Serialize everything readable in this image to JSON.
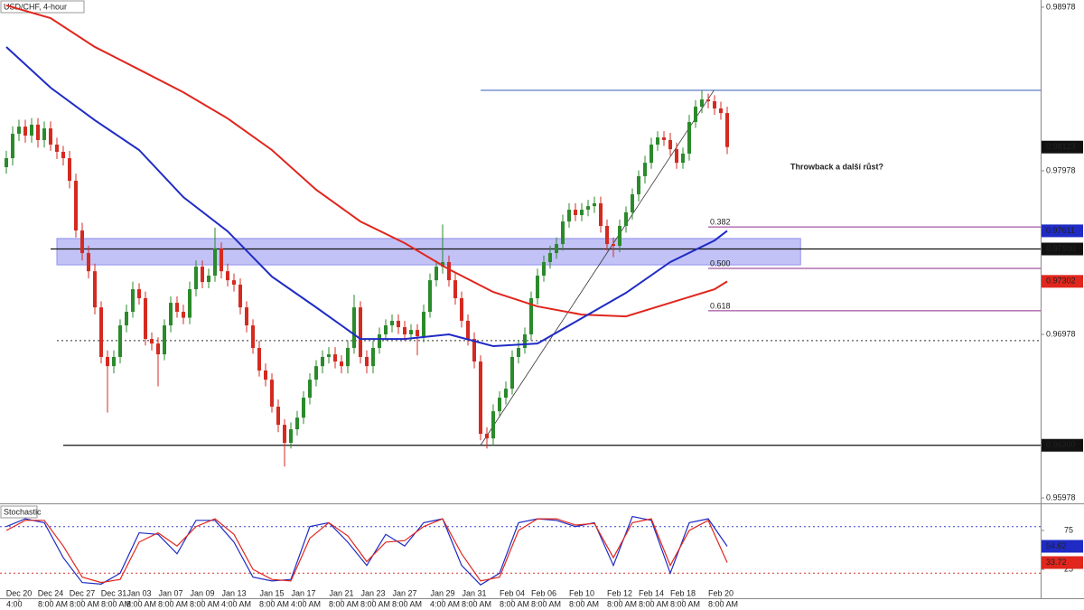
{
  "chart_data": [
    {
      "type": "candlestick",
      "title": "USD/CHF, 4-hour",
      "open": [
        0.98,
        0.98055,
        0.98204,
        0.98248,
        0.98193,
        0.9826,
        0.98166,
        0.98237,
        0.98138,
        0.98094,
        0.98055,
        0.97917,
        0.97613,
        0.97475,
        0.97364,
        0.97143,
        0.9684,
        0.96784,
        0.9684,
        0.97033,
        0.97116,
        0.97254,
        0.97199,
        0.9695,
        0.96922,
        0.96856,
        0.97033,
        0.97171,
        0.97116,
        0.9708,
        0.97254,
        0.97392,
        0.97298,
        0.97337,
        0.97503,
        0.97364,
        0.97309,
        0.97282,
        0.97143,
        0.97033,
        0.96895,
        0.96757,
        0.96701,
        0.96536,
        0.96425,
        0.96315,
        0.96398,
        0.96469,
        0.96591,
        0.96701,
        0.96784,
        0.9684,
        0.96856,
        0.96812,
        0.96784,
        0.96895,
        0.97143,
        0.9684,
        0.96784,
        0.96895,
        0.96978,
        0.97033,
        0.97061,
        0.97022,
        0.96978,
        0.97005,
        0.96967,
        0.97116,
        0.97309,
        0.97392,
        0.9742,
        0.97309,
        0.97199,
        0.97061,
        0.9695,
        0.96812,
        0.9637,
        0.96342,
        0.96508,
        0.96591,
        0.96646,
        0.9684,
        0.96895,
        0.96978,
        0.97199,
        0.97337,
        0.9742,
        0.97475,
        0.9753,
        0.97668,
        0.9774,
        0.97707,
        0.9774,
        0.97762,
        0.97779,
        0.97641,
        0.9753,
        0.97519,
        0.97641,
        0.97724,
        0.97834,
        0.97945,
        0.98027,
        0.98138,
        0.98182,
        0.98166,
        0.9811,
        0.98027,
        0.98083,
        0.98276,
        0.9837,
        0.98414,
        0.98403,
        0.98359,
        0.98331
      ],
      "high": [
        0.981,
        0.9825,
        0.9829,
        0.9829,
        0.983,
        0.983,
        0.9828,
        0.9828,
        0.9818,
        0.9813,
        0.981,
        0.9796,
        0.9766,
        0.9752,
        0.9741,
        0.9718,
        0.9688,
        0.9688,
        0.9707,
        0.9716,
        0.973,
        0.9729,
        0.9724,
        0.9699,
        0.9696,
        0.9707,
        0.9721,
        0.9721,
        0.9716,
        0.973,
        0.9743,
        0.9743,
        0.9738,
        0.9763,
        0.9754,
        0.9741,
        0.9735,
        0.9732,
        0.9718,
        0.9707,
        0.9694,
        0.968,
        0.9674,
        0.9658,
        0.9646,
        0.9644,
        0.9651,
        0.9663,
        0.9674,
        0.9682,
        0.9688,
        0.969,
        0.969,
        0.9685,
        0.9694,
        0.9722,
        0.9718,
        0.9688,
        0.9694,
        0.9702,
        0.9707,
        0.971,
        0.971,
        0.9706,
        0.9704,
        0.9704,
        0.9716,
        0.9735,
        0.9743,
        0.9765,
        0.9746,
        0.9735,
        0.9724,
        0.971,
        0.9699,
        0.9685,
        0.9641,
        0.9655,
        0.9663,
        0.9669,
        0.9688,
        0.9694,
        0.9702,
        0.9724,
        0.9738,
        0.9746,
        0.9752,
        0.9757,
        0.9771,
        0.9778,
        0.9778,
        0.9778,
        0.978,
        0.9782,
        0.9782,
        0.9768,
        0.9757,
        0.9768,
        0.9776,
        0.9787,
        0.9798,
        0.9807,
        0.9818,
        0.9822,
        0.9822,
        0.9821,
        0.9815,
        0.9812,
        0.9832,
        0.9841,
        0.9847,
        0.9845,
        0.9844,
        0.984,
        0.9837
      ],
      "low": [
        0.9796,
        0.9801,
        0.9816,
        0.9815,
        0.9815,
        0.9812,
        0.9812,
        0.981,
        0.9805,
        0.9801,
        0.9787,
        0.9757,
        0.9743,
        0.9732,
        0.971,
        0.968,
        0.965,
        0.9674,
        0.968,
        0.9699,
        0.9708,
        0.9716,
        0.9691,
        0.9688,
        0.9666,
        0.9682,
        0.9699,
        0.9708,
        0.9704,
        0.9704,
        0.9721,
        0.9726,
        0.9726,
        0.973,
        0.9732,
        0.9727,
        0.9724,
        0.971,
        0.9699,
        0.9686,
        0.9672,
        0.9666,
        0.965,
        0.9638,
        0.9617,
        0.9628,
        0.9636,
        0.9643,
        0.9655,
        0.9666,
        0.9674,
        0.968,
        0.9677,
        0.9674,
        0.9674,
        0.9686,
        0.968,
        0.9674,
        0.9674,
        0.9686,
        0.9694,
        0.9699,
        0.9698,
        0.9694,
        0.9694,
        0.9685,
        0.9693,
        0.9708,
        0.9727,
        0.9735,
        0.9727,
        0.9716,
        0.9702,
        0.9691,
        0.9677,
        0.9633,
        0.9628,
        0.963,
        0.9647,
        0.9655,
        0.9661,
        0.968,
        0.9686,
        0.9694,
        0.9716,
        0.973,
        0.9738,
        0.9744,
        0.9749,
        0.9763,
        0.9767,
        0.9767,
        0.977,
        0.9772,
        0.976,
        0.9749,
        0.9745,
        0.9748,
        0.976,
        0.9768,
        0.9779,
        0.979,
        0.9799,
        0.981,
        0.9813,
        0.9807,
        0.9799,
        0.9799,
        0.9804,
        0.9824,
        0.9833,
        0.9836,
        0.9832,
        0.9829,
        0.9808
      ],
      "close": [
        0.98055,
        0.98204,
        0.98248,
        0.98193,
        0.9826,
        0.98166,
        0.98237,
        0.98138,
        0.98094,
        0.98055,
        0.97917,
        0.97613,
        0.97475,
        0.97364,
        0.97143,
        0.9684,
        0.96784,
        0.9684,
        0.97033,
        0.97116,
        0.97254,
        0.97199,
        0.9695,
        0.96922,
        0.96856,
        0.97033,
        0.97171,
        0.97116,
        0.9708,
        0.97254,
        0.97392,
        0.97298,
        0.97337,
        0.97503,
        0.97364,
        0.97309,
        0.97282,
        0.97143,
        0.97033,
        0.96895,
        0.96757,
        0.96701,
        0.96536,
        0.96425,
        0.96315,
        0.96398,
        0.96469,
        0.96591,
        0.96701,
        0.96784,
        0.9684,
        0.96856,
        0.96812,
        0.96784,
        0.96895,
        0.97143,
        0.9684,
        0.96784,
        0.96895,
        0.96978,
        0.97033,
        0.97061,
        0.97022,
        0.96978,
        0.97005,
        0.96967,
        0.97116,
        0.97309,
        0.97392,
        0.9742,
        0.97309,
        0.97199,
        0.97061,
        0.9695,
        0.96812,
        0.9637,
        0.96342,
        0.96508,
        0.96591,
        0.96646,
        0.9684,
        0.96895,
        0.96978,
        0.97199,
        0.97337,
        0.9742,
        0.97475,
        0.9753,
        0.97668,
        0.9774,
        0.97707,
        0.9774,
        0.97762,
        0.97779,
        0.97641,
        0.9753,
        0.97519,
        0.97641,
        0.97724,
        0.97834,
        0.97945,
        0.98027,
        0.98138,
        0.98182,
        0.98166,
        0.9811,
        0.98027,
        0.98083,
        0.98276,
        0.9837,
        0.98414,
        0.98403,
        0.98359,
        0.98331,
        0.98123
      ],
      "up_color": "#2b8a2b",
      "down_color": "#d42a20",
      "xlim": [
        -1,
        163.57
      ],
      "ylim": [
        0.95956,
        0.99022
      ],
      "yticks": [
        0.95978,
        0.96978,
        0.97978,
        0.98978
      ],
      "lines": [
        {
          "color": "#e0261d",
          "x": [
            0,
            7,
            14,
            21,
            28,
            35,
            42,
            49,
            56,
            63,
            70,
            77,
            84,
            91,
            98,
            105,
            112,
            114
          ],
          "values": [
            0.98989,
            0.98911,
            0.98735,
            0.98597,
            0.98458,
            0.98298,
            0.98105,
            0.97862,
            0.97668,
            0.97536,
            0.97376,
            0.97237,
            0.97149,
            0.97099,
            0.97088,
            0.97171,
            0.97254,
            0.97302
          ]
        },
        {
          "color": "#1f2bc4",
          "x": [
            0,
            7,
            14,
            21,
            28,
            35,
            42,
            49,
            56,
            63,
            70,
            77,
            84,
            91,
            98,
            105,
            112,
            114
          ],
          "values": [
            0.98735,
            0.98486,
            0.98287,
            0.98105,
            0.97817,
            0.97608,
            0.97331,
            0.97143,
            0.9695,
            0.9695,
            0.96978,
            0.96906,
            0.96922,
            0.97077,
            0.97232,
            0.9742,
            0.97552,
            0.97611
          ]
        }
      ],
      "levels": [
        {
          "value": 0.975,
          "label": "0.97500",
          "from": 7,
          "color": "#111111",
          "style": "solid"
        },
        {
          "value": 0.963,
          "label": "0.96300",
          "from": 9,
          "color": "#111111",
          "style": "solid"
        },
        {
          "value": 0.9694,
          "from": 8,
          "color": "#555555",
          "style": "dotted"
        },
        {
          "value": 0.9847,
          "from": 75,
          "color": "#4a6fc0",
          "style": "solid"
        }
      ],
      "zone": {
        "from": 8,
        "to": 125.6,
        "ylim": [
          0.97403,
          0.97564
        ],
        "color": "#8f8ff0"
      },
      "fib": {
        "from": 111,
        "color": "#8b2a8b",
        "levels": [
          {
            "value": 0.97635,
            "label": "0.382"
          },
          {
            "value": 0.97381,
            "label": "0.500"
          },
          {
            "value": 0.97122,
            "label": "0.618"
          }
        ]
      },
      "trendline": {
        "x": [
          75,
          111.9
        ],
        "y": [
          0.963,
          0.9847
        ]
      },
      "annotation": {
        "text": "Throwback a další růst?",
        "x": 124,
        "y": 0.98
      }
    },
    {
      "type": "line",
      "title": "Stochastic",
      "x": [
        0,
        3,
        6,
        9,
        12,
        15,
        18,
        21,
        24,
        27,
        30,
        33,
        36,
        39,
        42,
        45,
        48,
        51,
        54,
        57,
        60,
        63,
        66,
        69,
        72,
        75,
        78,
        81,
        84,
        87,
        90,
        93,
        96,
        99,
        102,
        105,
        108,
        111,
        114
      ],
      "series": [
        {
          "color": "#1f2bc4",
          "values": [
            80,
            90,
            85,
            40,
            8,
            6,
            20,
            72,
            70,
            45,
            88,
            88,
            60,
            15,
            10,
            12,
            80,
            85,
            60,
            30,
            70,
            55,
            85,
            90,
            30,
            5,
            20,
            85,
            90,
            88,
            80,
            85,
            30,
            93,
            88,
            20,
            85,
            90,
            54.62
          ]
        },
        {
          "color": "#e0261d",
          "values": [
            75,
            88,
            88,
            55,
            15,
            8,
            12,
            60,
            72,
            55,
            80,
            90,
            70,
            25,
            12,
            10,
            65,
            85,
            68,
            35,
            60,
            62,
            80,
            90,
            45,
            10,
            15,
            75,
            90,
            90,
            82,
            84,
            40,
            85,
            90,
            30,
            75,
            88,
            33.72
          ]
        }
      ],
      "xlim": [
        -1,
        163.57
      ],
      "ylim": [
        -9.9,
        106.4
      ],
      "yticks": [
        25,
        50,
        75
      ],
      "levels": [
        {
          "value": 80,
          "color": "#3344cc"
        },
        {
          "value": 20,
          "color": "#d33333"
        }
      ],
      "xticks": [
        {
          "value": 2,
          "label": "Dec 20"
        },
        {
          "value": 7,
          "label": "Dec 24"
        },
        {
          "value": 12,
          "label": "Dec 27"
        },
        {
          "value": 17,
          "label": "Dec 31"
        },
        {
          "value": 21,
          "label": "Jan 03"
        },
        {
          "value": 26,
          "label": "Jan 07"
        },
        {
          "value": 31,
          "label": "Jan 09"
        },
        {
          "value": 36,
          "label": "Jan 13"
        },
        {
          "value": 42,
          "label": "Jan 15"
        },
        {
          "value": 47,
          "label": "Jan 17"
        },
        {
          "value": 53,
          "label": "Jan 21"
        },
        {
          "value": 58,
          "label": "Jan 23"
        },
        {
          "value": 63,
          "label": "Jan 27"
        },
        {
          "value": 69,
          "label": "Jan 29"
        },
        {
          "value": 74,
          "label": "Jan 31"
        },
        {
          "value": 80,
          "label": "Feb 04"
        },
        {
          "value": 85,
          "label": "Feb 06"
        },
        {
          "value": 91,
          "label": "Feb 10"
        },
        {
          "value": 97,
          "label": "Feb 12"
        },
        {
          "value": 102,
          "label": "Feb 14"
        },
        {
          "value": 107,
          "label": "Feb 18"
        },
        {
          "value": 113,
          "label": "Feb 20"
        }
      ],
      "x_time_labels": [
        "4:00",
        "8:00 AM",
        "8:00 AM",
        "8:00 AM",
        "8:00 AM",
        "8:00 AM",
        "8:00 AM",
        "4:00 AM",
        "8:00 AM",
        "4:00 AM",
        "8:00 AM",
        "8:00 AM",
        "8:00 AM",
        "4:00 AM",
        "8:00 AM",
        "8:00 AM",
        "8:00 AM",
        "8:00 AM",
        "8:00 AM",
        "8:00 AM",
        "8:00 AM",
        "8:00 AM"
      ]
    }
  ]
}
